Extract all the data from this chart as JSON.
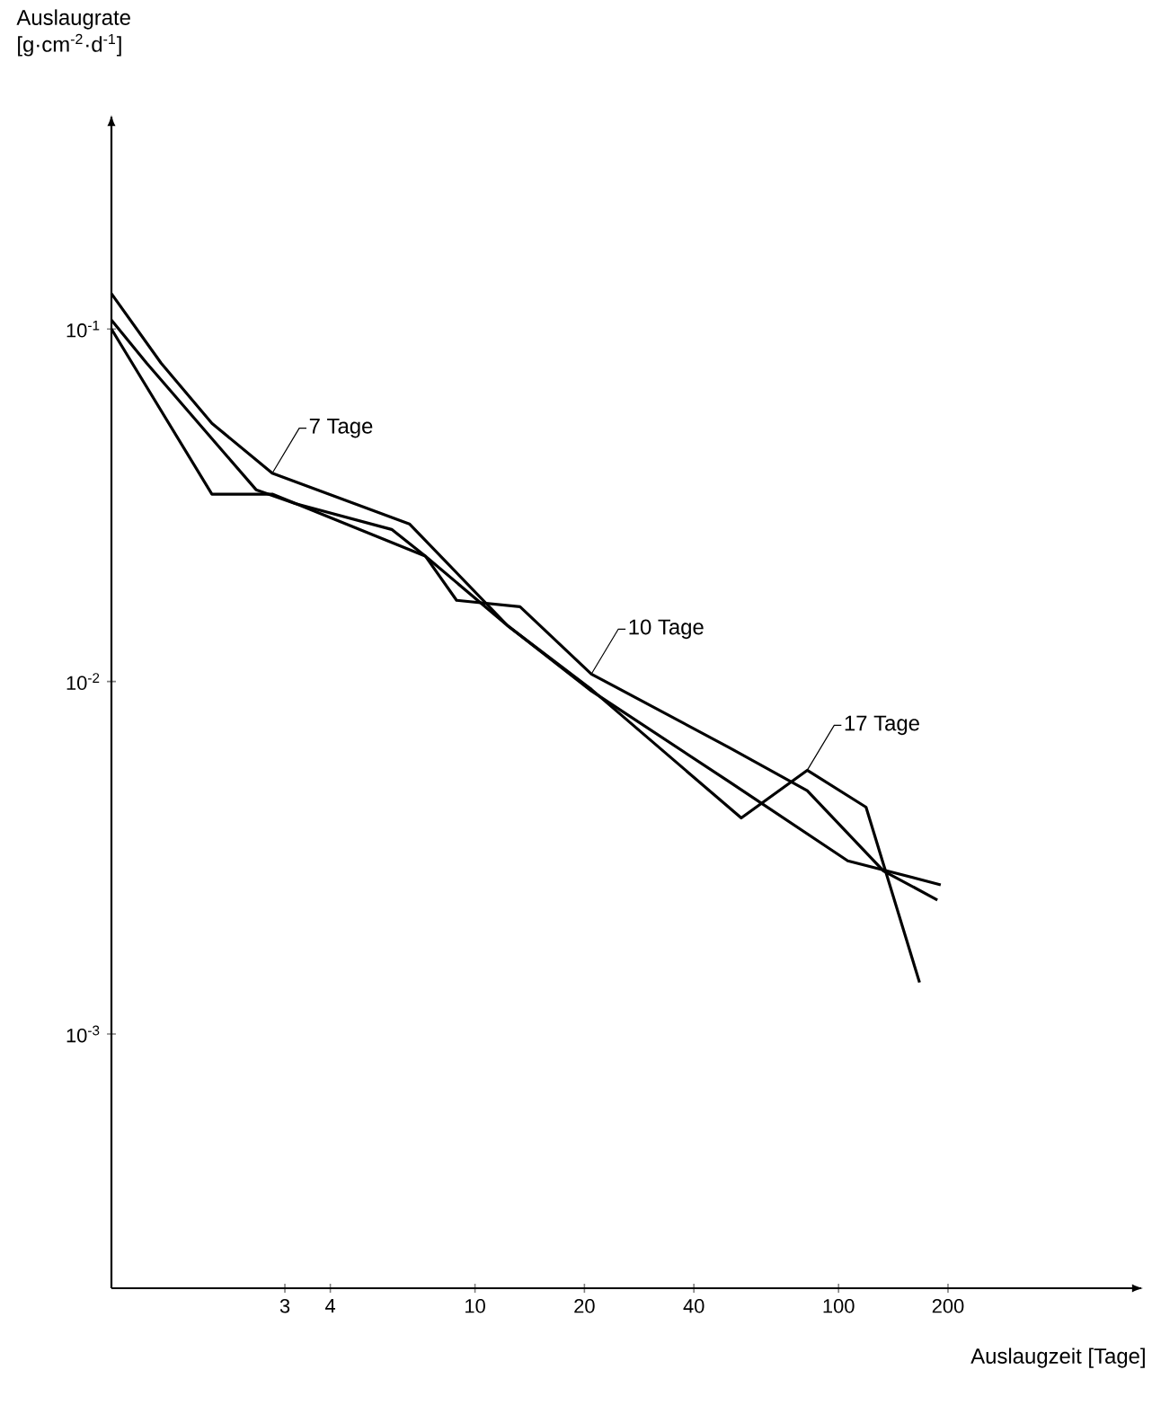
{
  "chart_data": {
    "type": "line",
    "xlabel": "Auslaugzeit [Tage]",
    "ylabel": "Auslaugrate [g·cm$^{-2}$·d$^{-1}$]",
    "log": "xy",
    "line_style": "solid",
    "xlim": [
      1,
      680
    ],
    "ylim": [
      0.00019,
      0.4
    ],
    "xticks": [
      3,
      4,
      10,
      20,
      40,
      100,
      200
    ],
    "yticks": [
      {
        "value": 0.1,
        "label": "10$^{-1}$"
      },
      {
        "value": 0.01,
        "label": "10$^{-2}$"
      },
      {
        "value": 0.001,
        "label": "10$^{-3}$"
      }
    ],
    "series": [
      {
        "name": "7 Tage",
        "color": "#000000",
        "x": [
          1.0,
          1.37,
          1.89,
          2.77,
          6.6,
          12.3,
          20.9,
          50,
          106,
          191
        ],
        "values": [
          0.126,
          0.08,
          0.054,
          0.039,
          0.028,
          0.0144,
          0.0094,
          0.0052,
          0.0031,
          0.00265
        ]
      },
      {
        "name": "10 Tage",
        "color": "#000000",
        "x": [
          1.0,
          1.25,
          2.5,
          3.2,
          5.9,
          7.3,
          8.9,
          13.3,
          20.9,
          50,
          82,
          133,
          187
        ],
        "values": [
          0.106,
          0.08,
          0.035,
          0.032,
          0.027,
          0.0227,
          0.017,
          0.0163,
          0.0105,
          0.0065,
          0.0049,
          0.0029,
          0.0024
        ]
      },
      {
        "name": "17 Tage",
        "color": "#000000",
        "x": [
          1.0,
          1.89,
          2.77,
          7.3,
          12.3,
          20.9,
          54,
          82,
          119,
          167
        ],
        "values": [
          0.1,
          0.034,
          0.034,
          0.0227,
          0.0144,
          0.0095,
          0.0041,
          0.0056,
          0.0044,
          0.0014
        ]
      }
    ]
  }
}
